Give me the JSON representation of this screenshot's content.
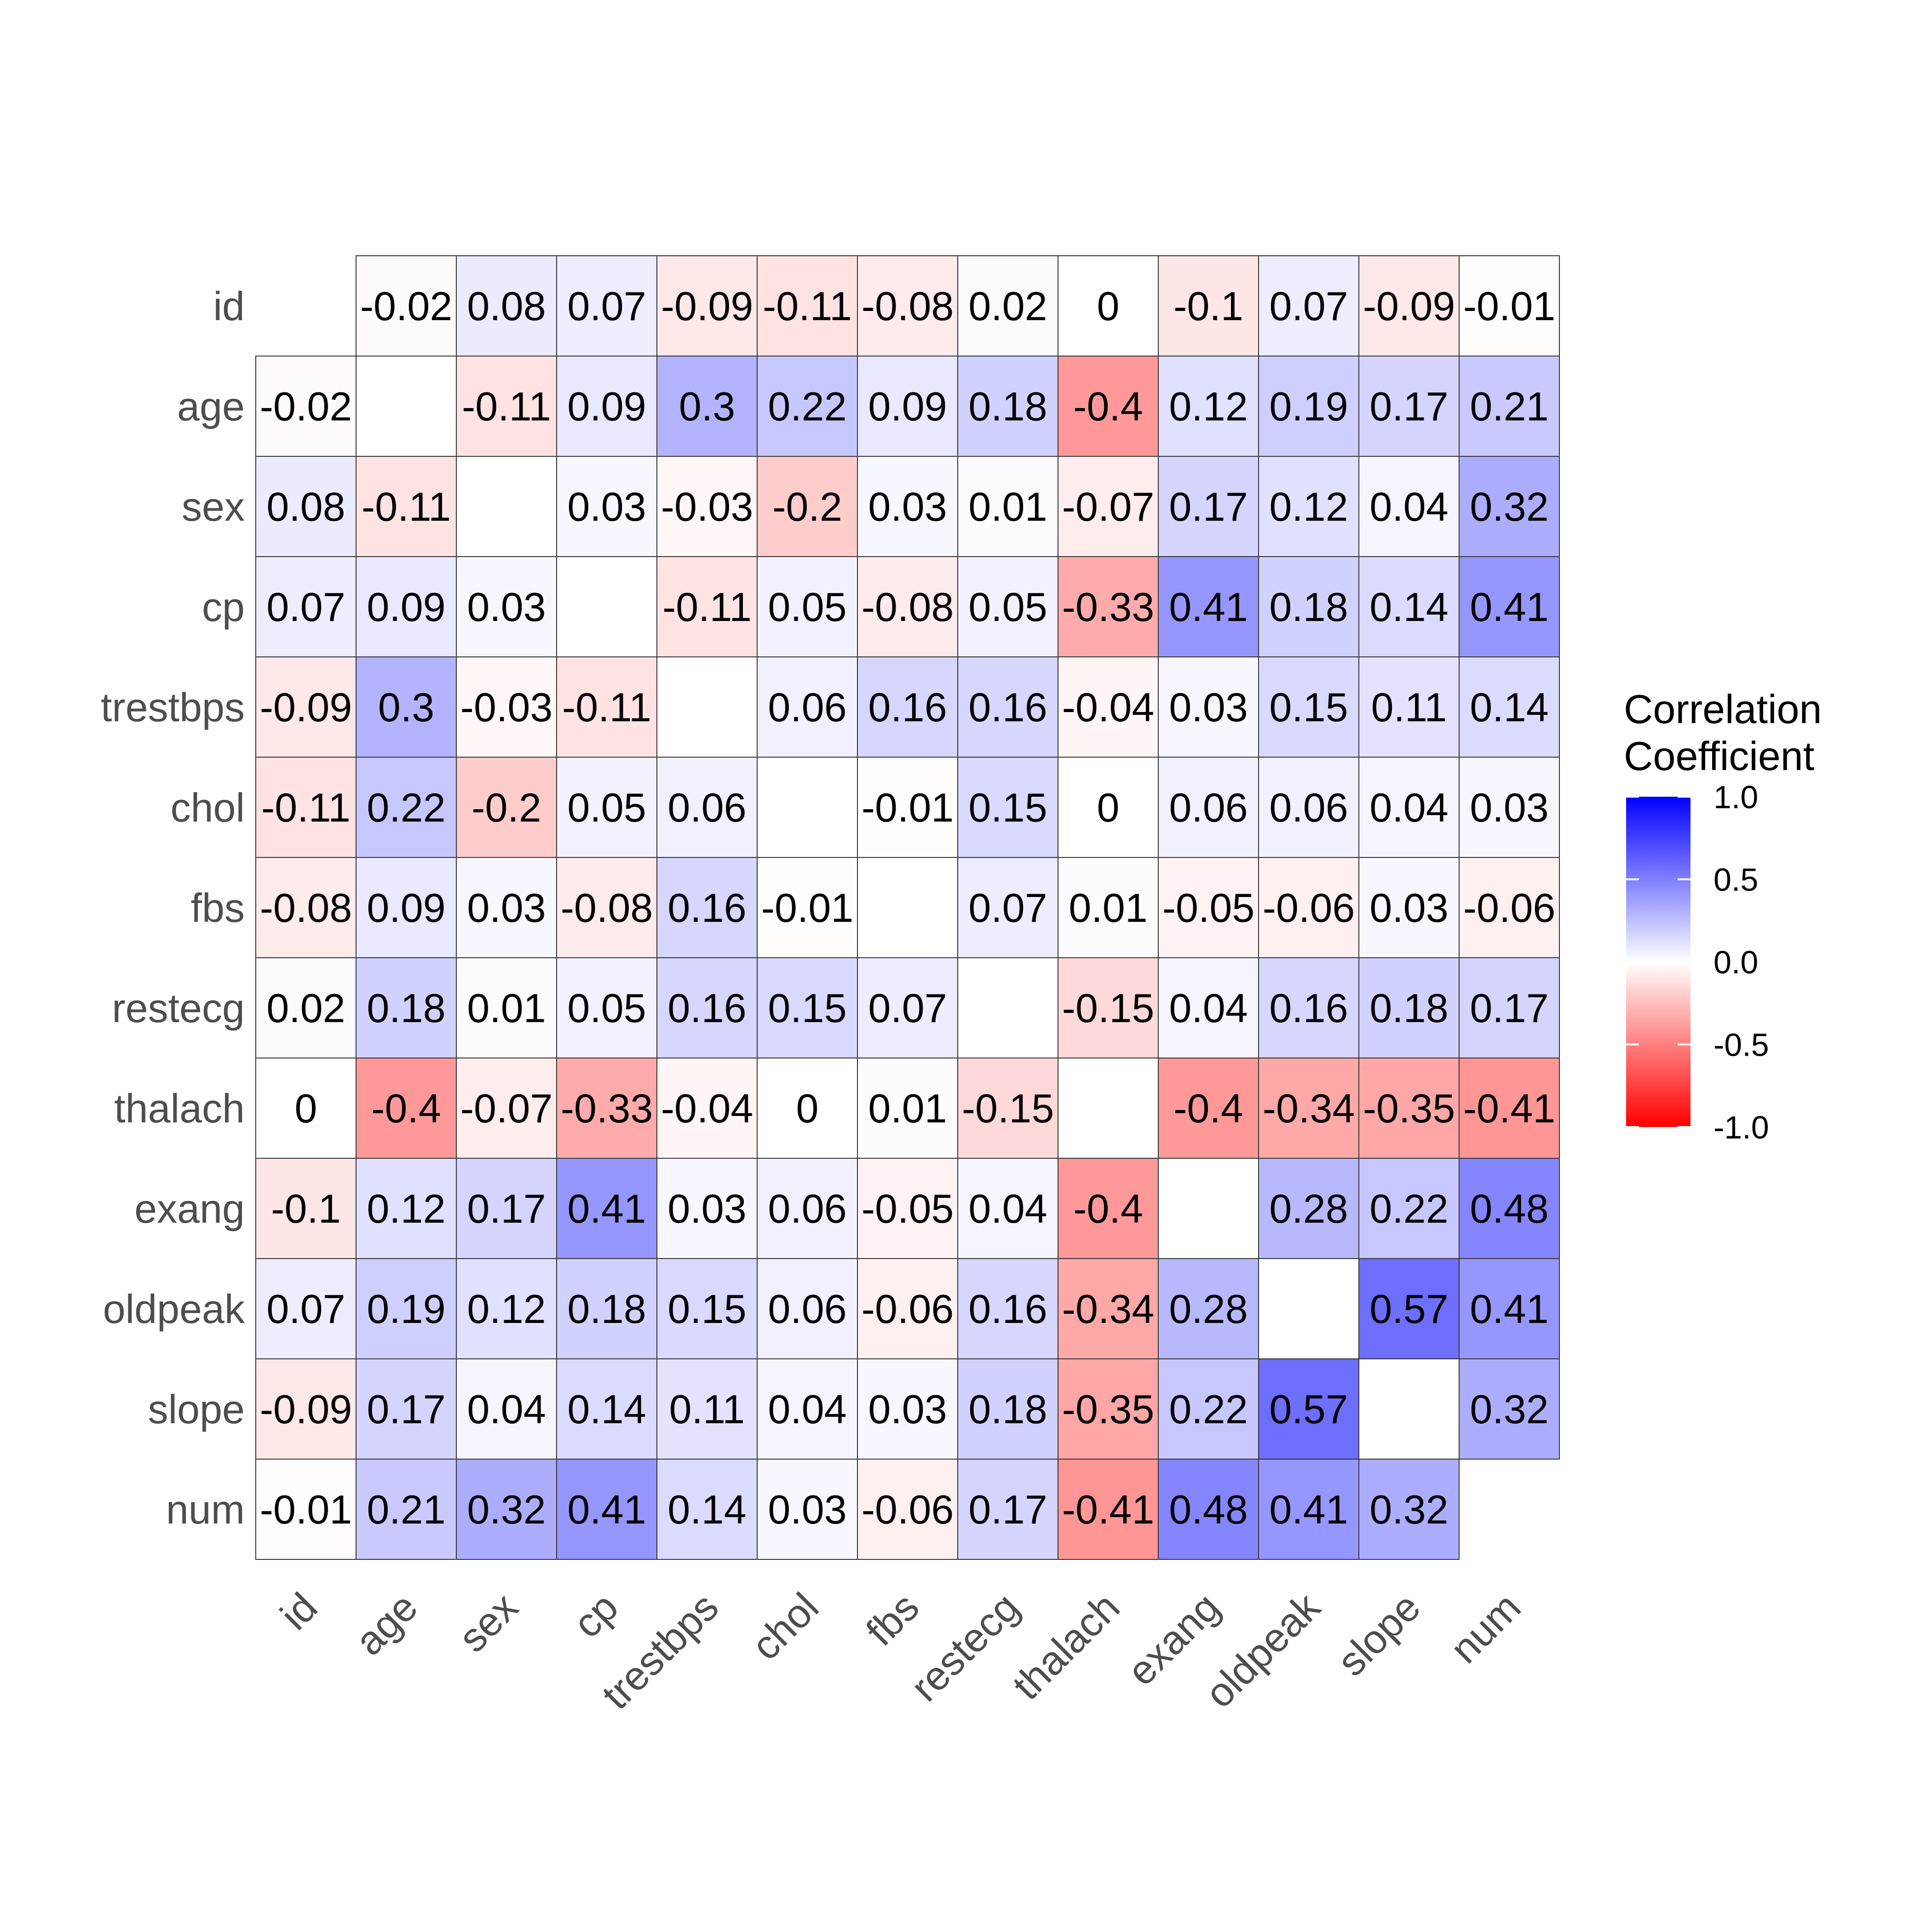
{
  "chart_data": {
    "type": "heatmap",
    "variables": [
      "id",
      "age",
      "sex",
      "cp",
      "trestbps",
      "chol",
      "fbs",
      "restecg",
      "thalach",
      "exang",
      "oldpeak",
      "slope",
      "num"
    ],
    "x": [
      "id",
      "age",
      "sex",
      "cp",
      "trestbps",
      "chol",
      "fbs",
      "restecg",
      "thalach",
      "exang",
      "oldpeak",
      "slope",
      "num"
    ],
    "y": [
      "id",
      "age",
      "sex",
      "cp",
      "trestbps",
      "chol",
      "fbs",
      "restecg",
      "thalach",
      "exang",
      "oldpeak",
      "slope",
      "num"
    ],
    "matrix": [
      [
        null,
        "-0.02",
        "0.08",
        "0.07",
        "-0.09",
        "-0.11",
        "-0.08",
        "0.02",
        "0",
        "-0.1",
        "0.07",
        "-0.09",
        "-0.01"
      ],
      [
        "-0.02",
        null,
        "-0.11",
        "0.09",
        "0.3",
        "0.22",
        "0.09",
        "0.18",
        "-0.4",
        "0.12",
        "0.19",
        "0.17",
        "0.21"
      ],
      [
        "0.08",
        "-0.11",
        null,
        "0.03",
        "-0.03",
        "-0.2",
        "0.03",
        "0.01",
        "-0.07",
        "0.17",
        "0.12",
        "0.04",
        "0.32"
      ],
      [
        "0.07",
        "0.09",
        "0.03",
        null,
        "-0.11",
        "0.05",
        "-0.08",
        "0.05",
        "-0.33",
        "0.41",
        "0.18",
        "0.14",
        "0.41"
      ],
      [
        "-0.09",
        "0.3",
        "-0.03",
        "-0.11",
        null,
        "0.06",
        "0.16",
        "0.16",
        "-0.04",
        "0.03",
        "0.15",
        "0.11",
        "0.14"
      ],
      [
        "-0.11",
        "0.22",
        "-0.2",
        "0.05",
        "0.06",
        null,
        "-0.01",
        "0.15",
        "0",
        "0.06",
        "0.06",
        "0.04",
        "0.03"
      ],
      [
        "-0.08",
        "0.09",
        "0.03",
        "-0.08",
        "0.16",
        "-0.01",
        null,
        "0.07",
        "0.01",
        "-0.05",
        "-0.06",
        "0.03",
        "-0.06"
      ],
      [
        "0.02",
        "0.18",
        "0.01",
        "0.05",
        "0.16",
        "0.15",
        "0.07",
        null,
        "-0.15",
        "0.04",
        "0.16",
        "0.18",
        "0.17"
      ],
      [
        "0",
        "-0.4",
        "-0.07",
        "-0.33",
        "-0.04",
        "0",
        "0.01",
        "-0.15",
        null,
        "-0.4",
        "-0.34",
        "-0.35",
        "-0.41"
      ],
      [
        "-0.1",
        "0.12",
        "0.17",
        "0.41",
        "0.03",
        "0.06",
        "-0.05",
        "0.04",
        "-0.4",
        null,
        "0.28",
        "0.22",
        "0.48"
      ],
      [
        "0.07",
        "0.19",
        "0.12",
        "0.18",
        "0.15",
        "0.06",
        "-0.06",
        "0.16",
        "-0.34",
        "0.28",
        null,
        "0.57",
        "0.41"
      ],
      [
        "-0.09",
        "0.17",
        "0.04",
        "0.14",
        "0.11",
        "0.04",
        "0.03",
        "0.18",
        "-0.35",
        "0.22",
        "0.57",
        null,
        "0.32"
      ],
      [
        "-0.01",
        "0.21",
        "0.32",
        "0.41",
        "0.14",
        "0.03",
        "-0.06",
        "0.17",
        "-0.41",
        "0.48",
        "0.41",
        "0.32",
        null
      ]
    ],
    "color_scale": {
      "low": "#FF0000",
      "mid": "#FFFFFF",
      "high": "#0000FF",
      "limits": [
        -1,
        1
      ]
    },
    "legend": {
      "title_lines": [
        "Correlation",
        "Coefficient"
      ],
      "ticks": [
        "1.0",
        "0.5",
        "0.0",
        "-0.5",
        "-1.0"
      ],
      "placement": "right"
    },
    "title": "",
    "xlabel": "",
    "ylabel": "",
    "grid": false
  }
}
